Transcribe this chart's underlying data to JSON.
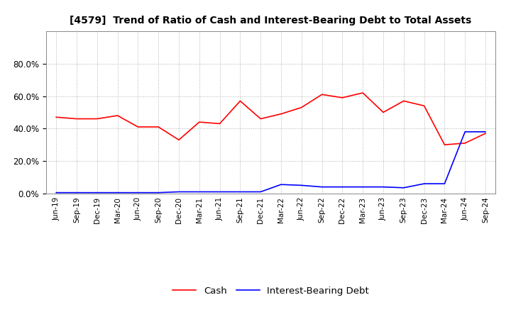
{
  "title": "[4579]  Trend of Ratio of Cash and Interest-Bearing Debt to Total Assets",
  "x_labels": [
    "Jun-19",
    "Sep-19",
    "Dec-19",
    "Mar-20",
    "Jun-20",
    "Sep-20",
    "Dec-20",
    "Mar-21",
    "Jun-21",
    "Sep-21",
    "Dec-21",
    "Mar-22",
    "Jun-22",
    "Sep-22",
    "Dec-22",
    "Mar-23",
    "Jun-23",
    "Sep-23",
    "Dec-23",
    "Mar-24",
    "Jun-24",
    "Sep-24"
  ],
  "cash": [
    0.47,
    0.46,
    0.46,
    0.48,
    0.41,
    0.41,
    0.33,
    0.44,
    0.43,
    0.57,
    0.46,
    0.49,
    0.53,
    0.61,
    0.59,
    0.62,
    0.5,
    0.57,
    0.54,
    0.3,
    0.31,
    0.37
  ],
  "debt": [
    0.005,
    0.005,
    0.005,
    0.005,
    0.005,
    0.005,
    0.01,
    0.01,
    0.01,
    0.01,
    0.01,
    0.055,
    0.05,
    0.04,
    0.04,
    0.04,
    0.04,
    0.035,
    0.06,
    0.06,
    0.38,
    0.38
  ],
  "cash_color": "#ff0000",
  "debt_color": "#0000ff",
  "background_color": "#ffffff",
  "grid_color": "#b0b0b0",
  "ylim": [
    0.0,
    1.0
  ],
  "yticks": [
    0.0,
    0.2,
    0.4,
    0.6,
    0.8
  ],
  "legend_labels": [
    "Cash",
    "Interest-Bearing Debt"
  ]
}
